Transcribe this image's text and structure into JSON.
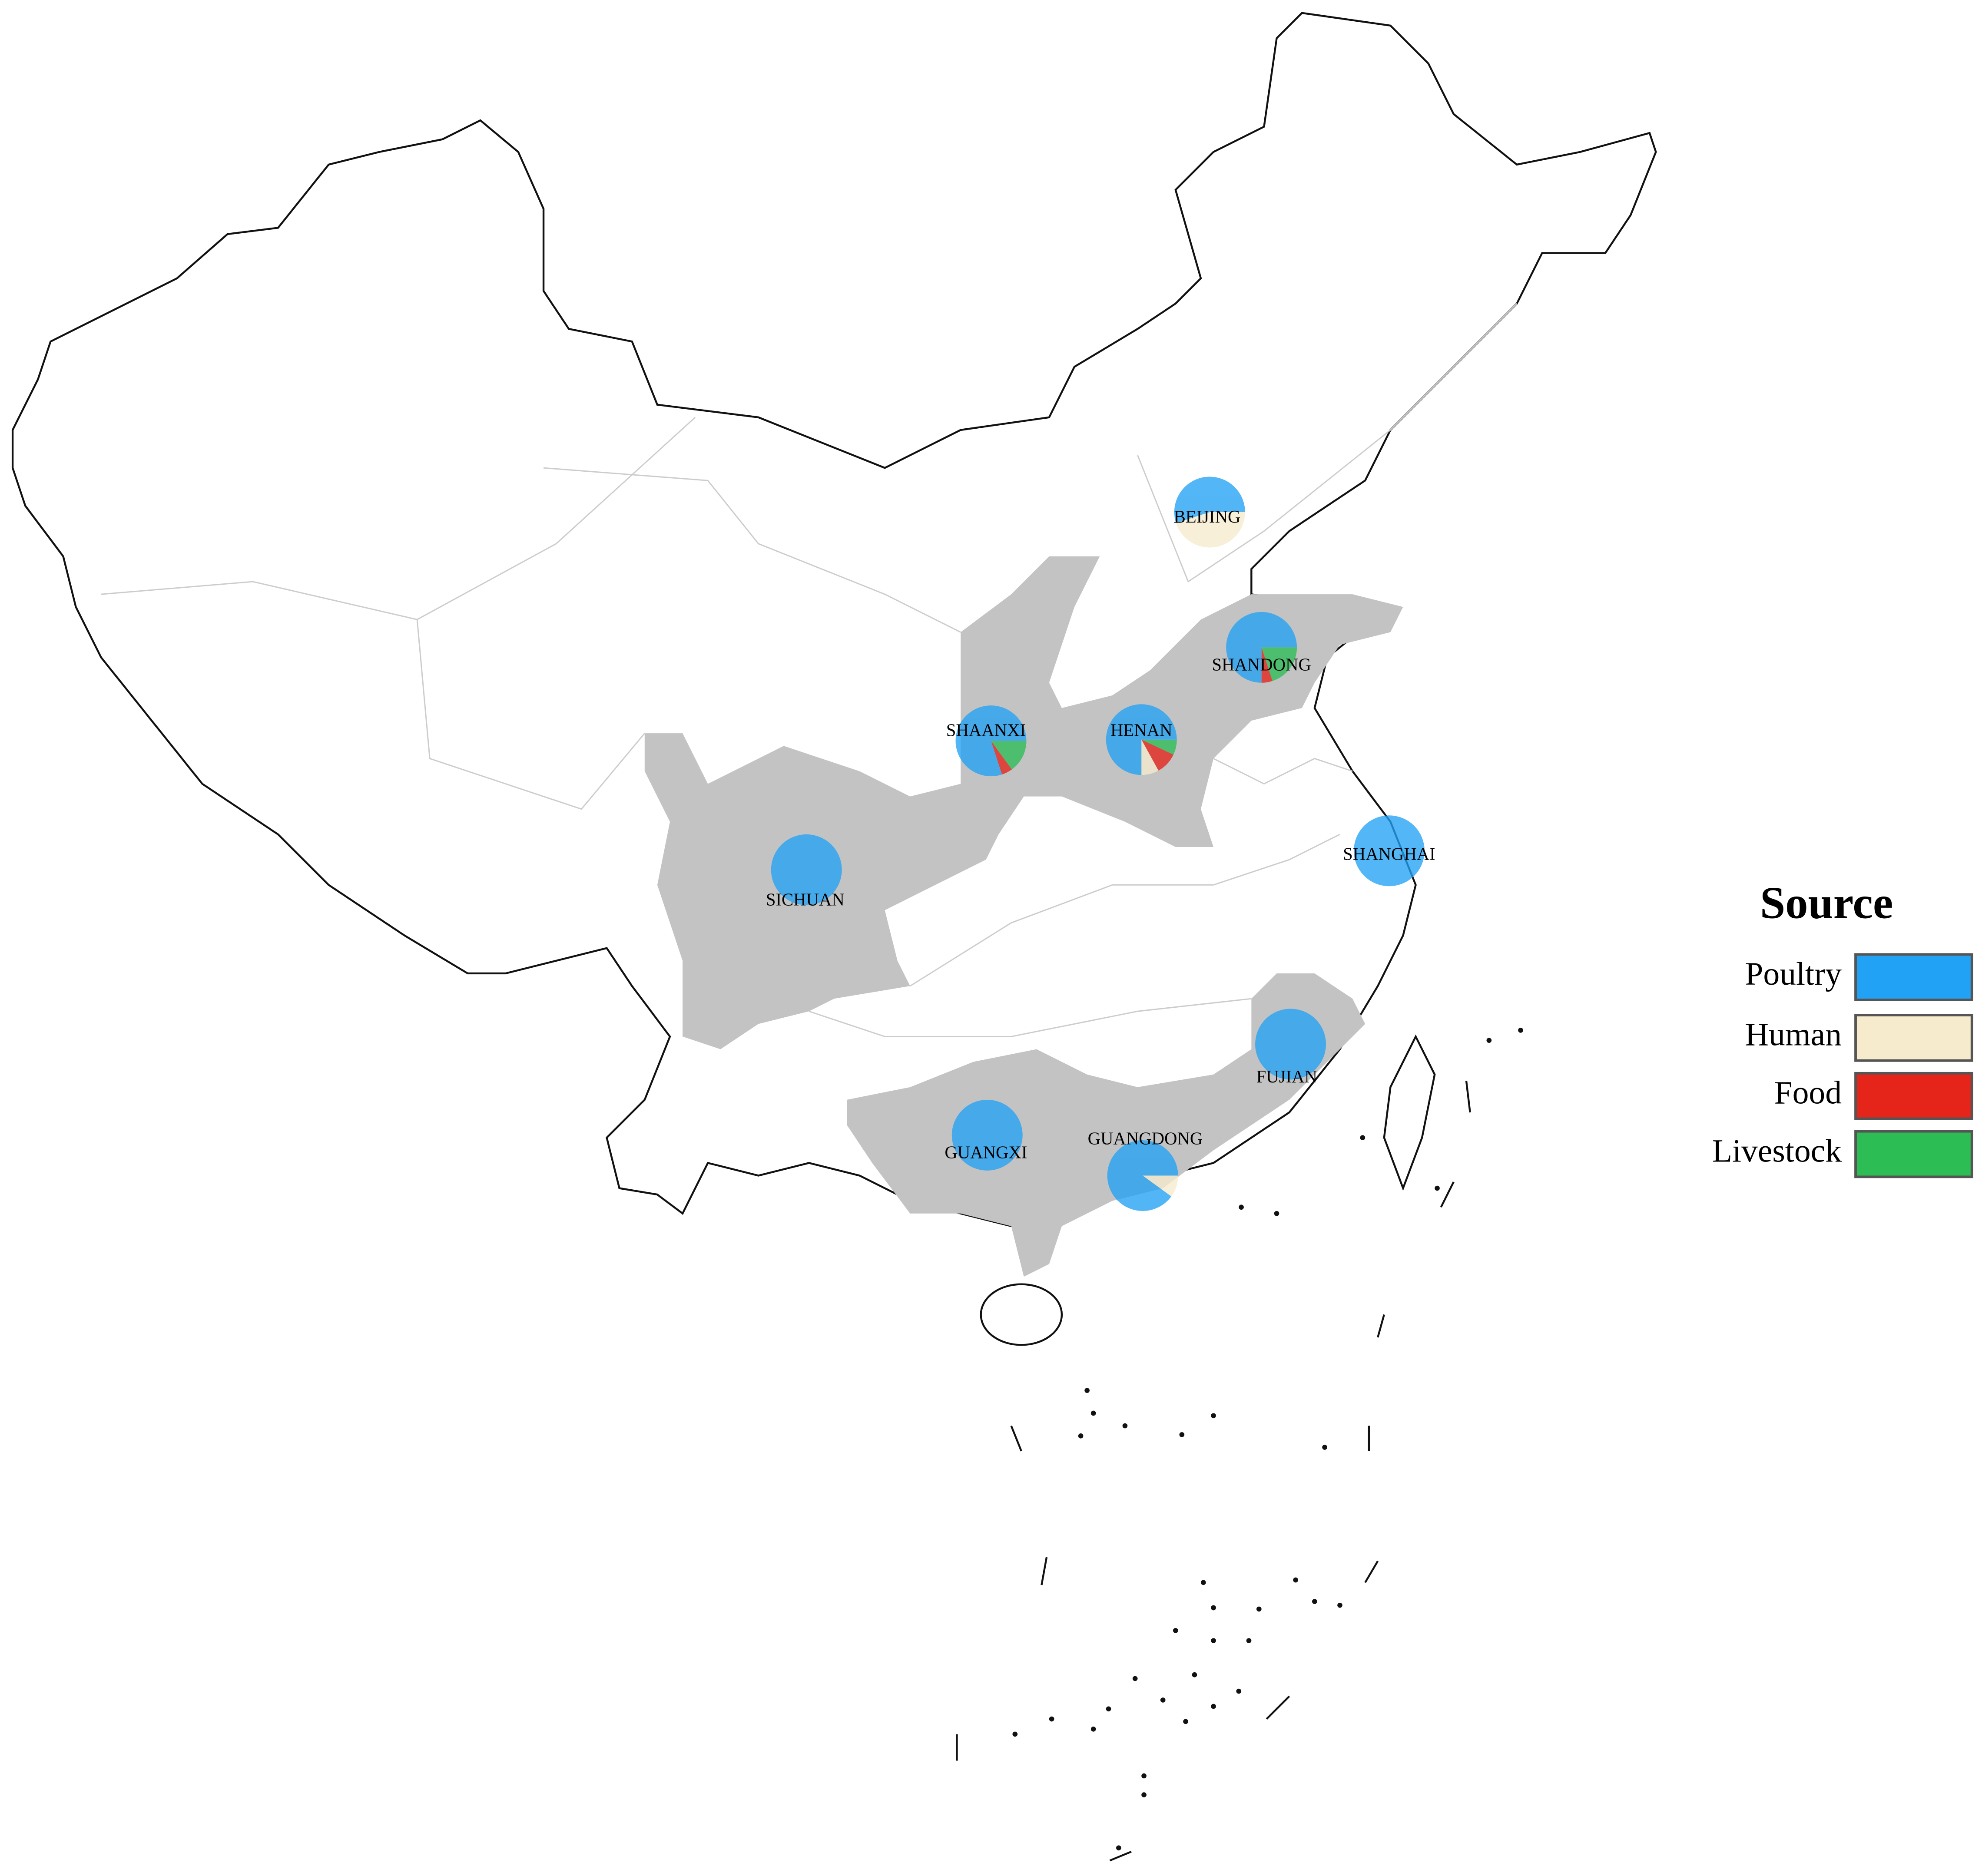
{
  "legend": {
    "title": "Source",
    "items": [
      {
        "name": "Poultry",
        "color": "#22a2f4"
      },
      {
        "name": "Human",
        "color": "#f6ebcd"
      },
      {
        "name": "Food",
        "color": "#e5241a"
      },
      {
        "name": "Livestock",
        "color": "#2dbd55"
      }
    ]
  },
  "provinces": [
    {
      "name": "BEIJING",
      "values": [
        55,
        45,
        0,
        0
      ]
    },
    {
      "name": "SHANDONG",
      "values": [
        75,
        0,
        5,
        20
      ]
    },
    {
      "name": "SHAANXI",
      "values": [
        80,
        0,
        5,
        15
      ]
    },
    {
      "name": "HENAN",
      "values": [
        75,
        8,
        10,
        7
      ]
    },
    {
      "name": "SICHUAN",
      "values": [
        100,
        0,
        0,
        0
      ]
    },
    {
      "name": "SHANGHAI",
      "values": [
        100,
        0,
        0,
        0
      ]
    },
    {
      "name": "FUJIAN",
      "values": [
        100,
        0,
        0,
        0
      ]
    },
    {
      "name": "GUANGXI",
      "values": [
        100,
        0,
        0,
        0
      ]
    },
    {
      "name": "GUANGDONG",
      "values": [
        90,
        10,
        0,
        0
      ]
    }
  ]
}
